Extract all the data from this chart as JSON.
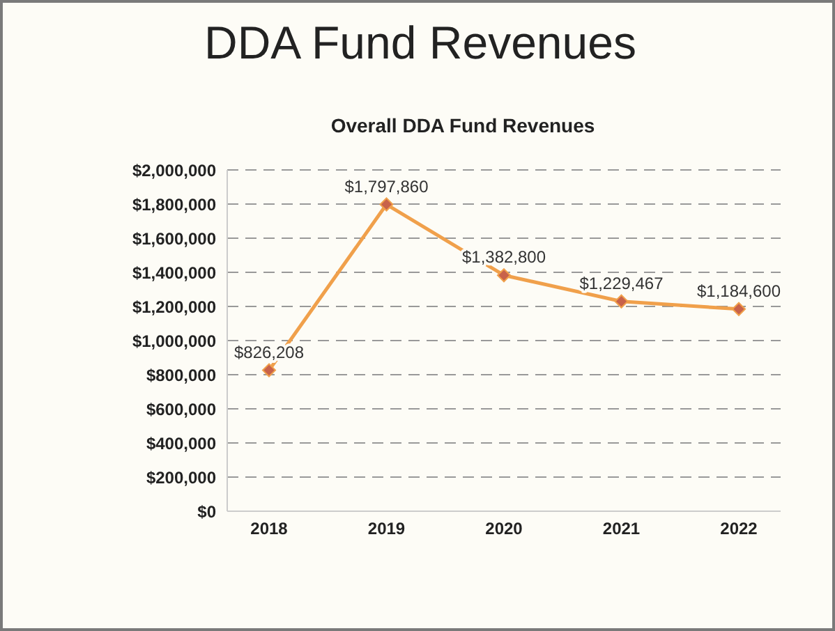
{
  "chart_data": {
    "type": "line",
    "title": "DDA Fund Revenues",
    "subtitle": "Overall DDA Fund Revenues",
    "categories": [
      "2018",
      "2019",
      "2020",
      "2021",
      "2022"
    ],
    "series": [
      {
        "color": "#f0a04b",
        "values": [
          826208,
          1797860,
          1382800,
          1229467,
          1184600
        ],
        "value_labels": [
          "$826,208",
          "$1,797,860",
          "$1,382,800",
          "$1,229,467",
          "$1,184,600"
        ]
      }
    ],
    "ylim": [
      0,
      2000000
    ],
    "yticks": [
      {
        "value": 0,
        "label": "$0"
      },
      {
        "value": 200000,
        "label": "$200,000"
      },
      {
        "value": 400000,
        "label": "$400,000"
      },
      {
        "value": 600000,
        "label": "$600,000"
      },
      {
        "value": 800000,
        "label": "$800,000"
      },
      {
        "value": 1000000,
        "label": "$1,000,000"
      },
      {
        "value": 1200000,
        "label": "$1,200,000"
      },
      {
        "value": 1400000,
        "label": "$1,400,000"
      },
      {
        "value": 1600000,
        "label": "$1,600,000"
      },
      {
        "value": 1800000,
        "label": "$1,800,000"
      },
      {
        "value": 2000000,
        "label": "$2,000,000"
      }
    ],
    "grid": "y",
    "legend": false,
    "marker": "diamond",
    "line_style": "solid"
  }
}
